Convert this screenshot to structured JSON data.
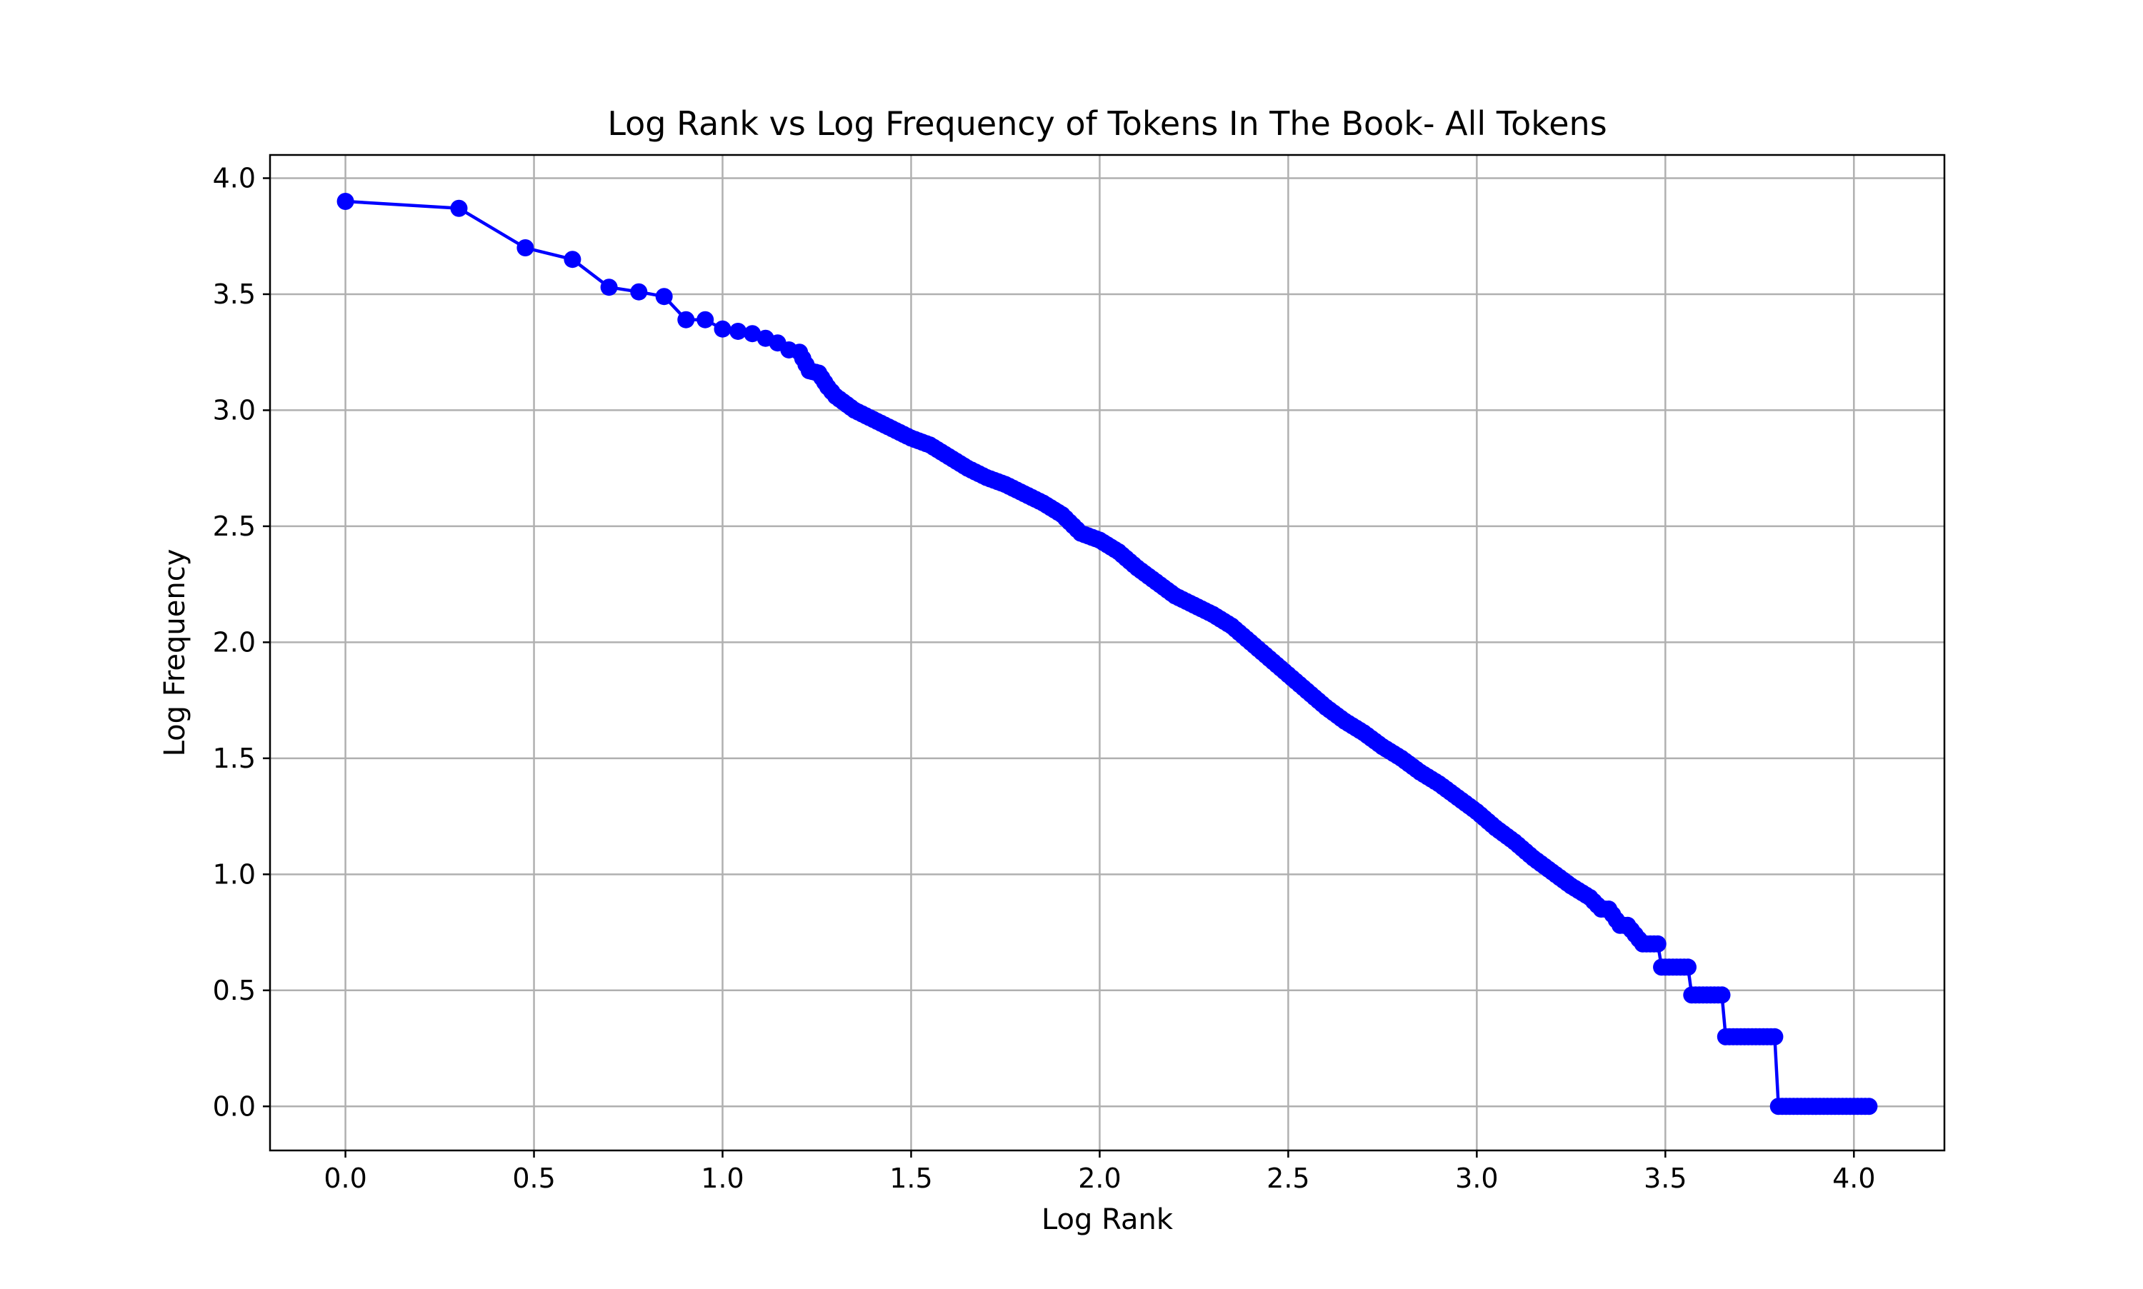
{
  "chart_data": {
    "type": "line",
    "title": "Log Rank vs Log Frequency of Tokens In The Book- All Tokens",
    "xlabel": "Log Rank",
    "ylabel": "Log Frequency",
    "xlim": [
      -0.2,
      4.24
    ],
    "ylim": [
      -0.19,
      4.1
    ],
    "xticks": [
      "0.0",
      "0.5",
      "1.0",
      "1.5",
      "2.0",
      "2.5",
      "3.0",
      "3.5",
      "4.0"
    ],
    "yticks": [
      "0.0",
      "0.5",
      "1.0",
      "1.5",
      "2.0",
      "2.5",
      "3.0",
      "3.5",
      "4.0"
    ],
    "grid": true,
    "legend": "none",
    "series": [
      {
        "color": "#0000ff",
        "marker": "circle",
        "x": [
          0.0,
          0.301,
          0.477,
          0.602,
          0.699,
          0.778,
          0.845,
          0.903,
          0.954,
          1.0,
          1.041,
          1.079,
          1.114,
          1.146,
          1.176,
          1.204,
          1.23,
          1.255,
          1.279,
          1.3,
          1.35,
          1.4,
          1.45,
          1.5,
          1.55,
          1.6,
          1.65,
          1.7,
          1.75,
          1.8,
          1.85,
          1.9,
          1.95,
          2.0,
          2.05,
          2.1,
          2.15,
          2.2,
          2.25,
          2.3,
          2.35,
          2.4,
          2.45,
          2.5,
          2.55,
          2.6,
          2.65,
          2.7,
          2.75,
          2.8,
          2.85,
          2.9,
          2.95,
          3.0,
          3.05,
          3.1,
          3.15,
          3.2,
          3.25,
          3.3,
          3.33,
          3.35,
          3.38,
          3.4,
          3.44,
          3.45,
          3.48,
          3.49,
          3.52,
          3.55,
          3.56,
          3.57,
          3.6,
          3.63,
          3.65,
          3.66,
          3.69,
          3.72,
          3.75,
          3.78,
          3.79,
          3.8,
          3.84,
          3.88,
          3.92,
          3.96,
          4.0,
          4.04
        ],
        "y": [
          3.9,
          3.87,
          3.7,
          3.65,
          3.53,
          3.51,
          3.49,
          3.39,
          3.39,
          3.35,
          3.34,
          3.33,
          3.31,
          3.29,
          3.26,
          3.25,
          3.17,
          3.16,
          3.1,
          3.06,
          3.0,
          2.96,
          2.92,
          2.88,
          2.85,
          2.8,
          2.75,
          2.71,
          2.68,
          2.64,
          2.6,
          2.55,
          2.47,
          2.44,
          2.39,
          2.32,
          2.26,
          2.2,
          2.16,
          2.12,
          2.07,
          2.0,
          1.93,
          1.86,
          1.79,
          1.72,
          1.66,
          1.61,
          1.55,
          1.5,
          1.44,
          1.39,
          1.33,
          1.27,
          1.2,
          1.14,
          1.07,
          1.01,
          0.95,
          0.9,
          0.85,
          0.85,
          0.78,
          0.78,
          0.7,
          0.7,
          0.7,
          0.6,
          0.6,
          0.6,
          0.6,
          0.48,
          0.48,
          0.48,
          0.48,
          0.3,
          0.3,
          0.3,
          0.3,
          0.3,
          0.3,
          0.0,
          0.0,
          0.0,
          0.0,
          0.0,
          0.0,
          0.0
        ]
      }
    ]
  }
}
